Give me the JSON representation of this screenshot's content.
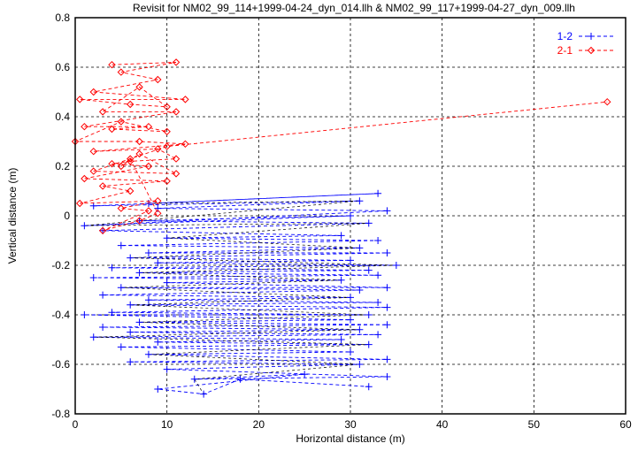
{
  "chart_data": {
    "type": "line",
    "title": "Revisit for NM02_99_114+1999-04-24_dyn_014.llh & NM02_99_117+1999-04-27_dyn_009.llh",
    "xlabel": "Horizontal distance (m)",
    "ylabel": "Vertical distance (m)",
    "xlim": [
      0,
      60
    ],
    "ylim": [
      -0.8,
      0.8
    ],
    "xticks": [
      "0",
      "10",
      "20",
      "30",
      "40",
      "50",
      "60"
    ],
    "yticks": [
      "-0.8",
      "-0.6",
      "-0.4",
      "-0.2",
      "0",
      "0.2",
      "0.4",
      "0.6",
      "0.8"
    ],
    "grid": true,
    "legend_position": "top-right",
    "series": [
      {
        "name": "1-2",
        "color": "#0000ff",
        "marker": "plus",
        "points": [
          [
            8,
            0.05
          ],
          [
            33,
            0.09
          ],
          [
            2,
            0.04
          ],
          [
            31,
            0.06
          ],
          [
            9,
            0.03
          ],
          [
            34,
            0.02
          ],
          [
            1,
            -0.04
          ],
          [
            30,
            0.0
          ],
          [
            7,
            -0.02
          ],
          [
            32,
            -0.03
          ],
          [
            3,
            -0.06
          ],
          [
            29,
            -0.08
          ],
          [
            10,
            -0.09
          ],
          [
            33,
            -0.1
          ],
          [
            5,
            -0.12
          ],
          [
            31,
            -0.13
          ],
          [
            8,
            -0.15
          ],
          [
            34,
            -0.15
          ],
          [
            6,
            -0.17
          ],
          [
            30,
            -0.18
          ],
          [
            9,
            -0.19
          ],
          [
            35,
            -0.2
          ],
          [
            4,
            -0.21
          ],
          [
            32,
            -0.22
          ],
          [
            7,
            -0.23
          ],
          [
            33,
            -0.24
          ],
          [
            2,
            -0.25
          ],
          [
            29,
            -0.26
          ],
          [
            10,
            -0.27
          ],
          [
            34,
            -0.29
          ],
          [
            5,
            -0.29
          ],
          [
            31,
            -0.3
          ],
          [
            3,
            -0.32
          ],
          [
            30,
            -0.33
          ],
          [
            8,
            -0.34
          ],
          [
            33,
            -0.35
          ],
          [
            6,
            -0.36
          ],
          [
            34,
            -0.37
          ],
          [
            4,
            -0.39
          ],
          [
            32,
            -0.4
          ],
          [
            1,
            -0.4
          ],
          [
            30,
            -0.42
          ],
          [
            7,
            -0.43
          ],
          [
            34,
            -0.44
          ],
          [
            3,
            -0.45
          ],
          [
            31,
            -0.46
          ],
          [
            6,
            -0.47
          ],
          [
            33,
            -0.48
          ],
          [
            2,
            -0.49
          ],
          [
            29,
            -0.5
          ],
          [
            9,
            -0.51
          ],
          [
            32,
            -0.52
          ],
          [
            5,
            -0.53
          ],
          [
            30,
            -0.55
          ],
          [
            8,
            -0.56
          ],
          [
            34,
            -0.58
          ],
          [
            6,
            -0.59
          ],
          [
            31,
            -0.6
          ],
          [
            10,
            -0.62
          ],
          [
            34,
            -0.65
          ],
          [
            13,
            -0.66
          ],
          [
            25,
            -0.64
          ],
          [
            9,
            -0.7
          ],
          [
            14,
            -0.72
          ],
          [
            18,
            -0.66
          ],
          [
            32,
            -0.69
          ]
        ]
      },
      {
        "name": "2-1",
        "color": "#ff0000",
        "marker": "diamond",
        "points": [
          [
            4,
            0.61
          ],
          [
            11,
            0.62
          ],
          [
            5,
            0.58
          ],
          [
            9,
            0.55
          ],
          [
            2,
            0.5
          ],
          [
            12,
            0.47
          ],
          [
            0.5,
            0.47
          ],
          [
            6,
            0.45
          ],
          [
            10,
            0.44
          ],
          [
            7,
            0.52
          ],
          [
            3,
            0.42
          ],
          [
            11,
            0.42
          ],
          [
            1,
            0.36
          ],
          [
            8,
            0.36
          ],
          [
            4,
            0.35
          ],
          [
            10,
            0.34
          ],
          [
            5,
            0.38
          ],
          [
            0,
            0.3
          ],
          [
            7,
            0.3
          ],
          [
            12,
            0.29
          ],
          [
            2,
            0.26
          ],
          [
            9,
            0.27
          ],
          [
            11,
            0.23
          ],
          [
            6,
            0.22
          ],
          [
            4,
            0.21
          ],
          [
            8,
            0.2
          ],
          [
            1,
            0.15
          ],
          [
            10,
            0.14
          ],
          [
            3,
            0.12
          ],
          [
            6,
            0.1
          ],
          [
            0.5,
            0.05
          ],
          [
            9,
            0.06
          ],
          [
            5,
            0.03
          ],
          [
            8,
            0.02
          ],
          [
            3,
            -0.06
          ],
          [
            7,
            -0.02
          ],
          [
            9,
            0.01
          ],
          [
            6,
            0.23
          ],
          [
            5,
            0.2
          ],
          [
            7,
            0.25
          ],
          [
            11,
            0.17
          ],
          [
            2,
            0.18
          ],
          [
            10,
            0.28
          ],
          [
            58,
            0.46
          ]
        ]
      }
    ]
  }
}
